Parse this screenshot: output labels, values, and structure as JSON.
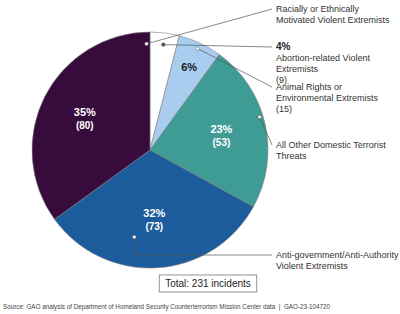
{
  "chart_data": {
    "type": "pie",
    "categories": [
      "Abortion-related Violent Extremists",
      "Animal Rights or Environmental Extremists",
      "All Other Domestic Terrorist Threats",
      "Anti-government/Anti-Authority Violent Extremists",
      "Racially or Ethnically Motivated Violent Extremists"
    ],
    "values": [
      4,
      6,
      23,
      32,
      35
    ],
    "value_labels": [
      "4%",
      "6%",
      "23%",
      "32%",
      "35%"
    ],
    "count_labels": [
      "(9)",
      "(15)",
      "(53)",
      "(73)",
      "(80)"
    ],
    "colors": [
      "#ffffff",
      "#a9cdef",
      "#3f9c94",
      "#1d5c9c",
      "#370b3c"
    ],
    "data_labels": true,
    "total_label": "Total: 231 incidents",
    "source": "Source: GAO analysis of Department of Homeland Security Counterterrorism Mission Center data  |  GAO-23-104720"
  }
}
